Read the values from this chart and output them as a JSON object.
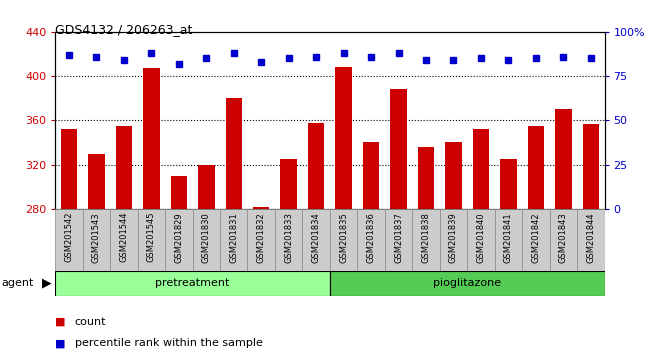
{
  "title": "GDS4132 / 206263_at",
  "samples": [
    "GSM201542",
    "GSM201543",
    "GSM201544",
    "GSM201545",
    "GSM201829",
    "GSM201830",
    "GSM201831",
    "GSM201832",
    "GSM201833",
    "GSM201834",
    "GSM201835",
    "GSM201836",
    "GSM201837",
    "GSM201838",
    "GSM201839",
    "GSM201840",
    "GSM201841",
    "GSM201842",
    "GSM201843",
    "GSM201844"
  ],
  "bar_values": [
    352,
    330,
    355,
    407,
    310,
    320,
    380,
    282,
    325,
    358,
    408,
    340,
    388,
    336,
    340,
    352,
    325,
    355,
    370,
    357
  ],
  "dot_values": [
    87,
    86,
    84,
    88,
    82,
    85,
    88,
    83,
    85,
    86,
    88,
    86,
    88,
    84,
    84,
    85,
    84,
    85,
    86,
    85
  ],
  "pretreatment_count": 10,
  "pioglitazone_count": 10,
  "bar_color": "#cc0000",
  "dot_color": "#0000cc",
  "ymin": 280,
  "ymax": 440,
  "yticks": [
    280,
    320,
    360,
    400,
    440
  ],
  "y2min": 0,
  "y2max": 100,
  "y2ticks": [
    0,
    25,
    50,
    75,
    100
  ],
  "y2ticklabels": [
    "0",
    "25",
    "50",
    "75",
    "100%"
  ],
  "label_color_left": "#cc0000",
  "label_color_right": "#0000cc",
  "legend_count_label": "count",
  "legend_pct_label": "percentile rank within the sample",
  "agent_label": "agent",
  "pretreatment_label": "pretreatment",
  "pioglitazone_label": "pioglitazone",
  "pretreatment_color": "#99ff99",
  "pioglitazone_color": "#55cc55",
  "xticklabel_bgcolor": "#cccccc",
  "xticklabel_edgecolor": "#888888"
}
